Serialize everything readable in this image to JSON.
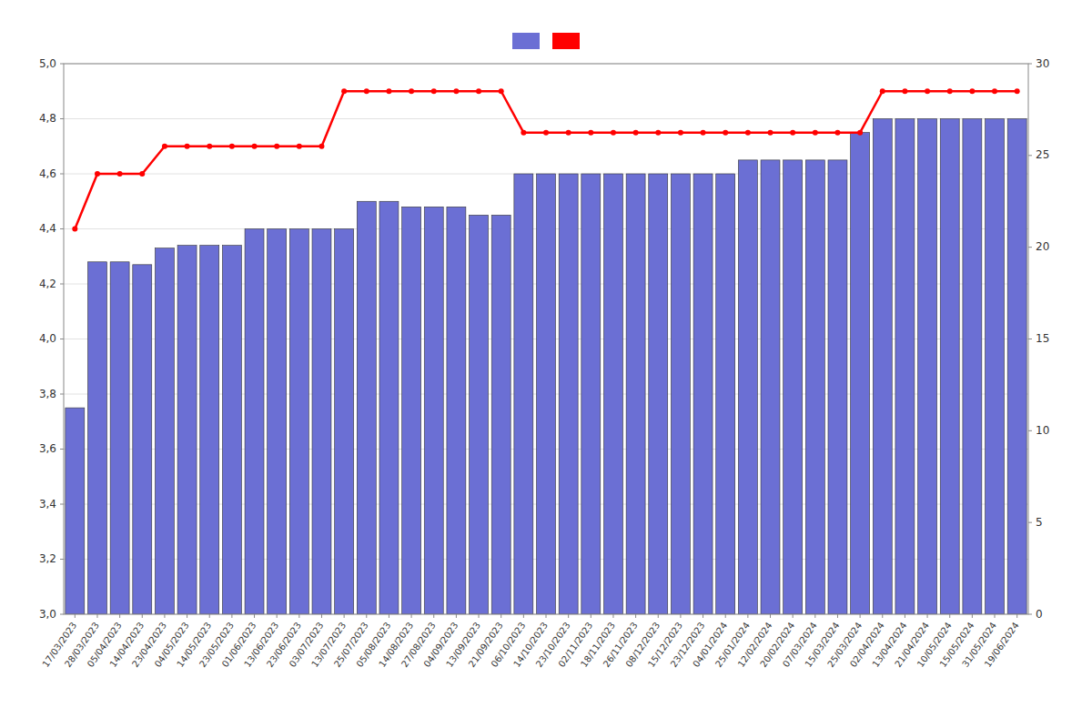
{
  "chart_data": {
    "type": "bar",
    "categories": [
      "17/03/2023",
      "28/03/2023",
      "05/04/2023",
      "14/04/2023",
      "23/04/2023",
      "04/05/2023",
      "14/05/2023",
      "23/05/2023",
      "01/06/2023",
      "13/06/2023",
      "23/06/2023",
      "03/07/2023",
      "13/07/2023",
      "25/07/2023",
      "05/08/2023",
      "14/08/2023",
      "27/08/2023",
      "04/09/2023",
      "13/09/2023",
      "21/09/2023",
      "06/10/2023",
      "14/10/2023",
      "23/10/2023",
      "02/11/2023",
      "18/11/2023",
      "26/11/2023",
      "08/12/2023",
      "15/12/2023",
      "23/12/2023",
      "04/01/2024",
      "25/01/2024",
      "12/02/2024",
      "20/02/2024",
      "07/03/2024",
      "15/03/2024",
      "25/03/2024",
      "02/04/2024",
      "13/04/2024",
      "21/04/2024",
      "10/05/2024",
      "15/05/2024",
      "31/05/2024",
      "19/06/2024"
    ],
    "series": [
      {
        "type": "bar",
        "color": "#6b6fd4",
        "values": [
          3.75,
          4.28,
          4.28,
          4.27,
          4.33,
          4.34,
          4.34,
          4.34,
          4.4,
          4.4,
          4.4,
          4.4,
          4.4,
          4.5,
          4.5,
          4.48,
          4.48,
          4.48,
          4.45,
          4.45,
          4.6,
          4.6,
          4.6,
          4.6,
          4.6,
          4.6,
          4.6,
          4.6,
          4.6,
          4.6,
          4.65,
          4.65,
          4.65,
          4.65,
          4.65,
          4.75,
          4.8,
          4.8,
          4.8,
          4.8,
          4.8,
          4.8,
          4.8
        ]
      },
      {
        "type": "line",
        "color": "#ff0000",
        "marker": "circle",
        "values": [
          4.4,
          4.6,
          4.6,
          4.6,
          4.7,
          4.7,
          4.7,
          4.7,
          4.7,
          4.7,
          4.7,
          4.7,
          4.9,
          4.9,
          4.9,
          4.9,
          4.9,
          4.9,
          4.9,
          4.9,
          4.75,
          4.75,
          4.75,
          4.75,
          4.75,
          4.75,
          4.75,
          4.75,
          4.75,
          4.75,
          4.75,
          4.75,
          4.75,
          4.75,
          4.75,
          4.75,
          4.9,
          4.9,
          4.9,
          4.9,
          4.9,
          4.9,
          4.9
        ]
      }
    ],
    "ylim": [
      3.0,
      5.0
    ],
    "yticks": [
      {
        "value": 3.0,
        "label": "3,0"
      },
      {
        "value": 3.2,
        "label": "3,2"
      },
      {
        "value": 3.4,
        "label": "3,4"
      },
      {
        "value": 3.6,
        "label": "3,6"
      },
      {
        "value": 3.8,
        "label": "3,8"
      },
      {
        "value": 4.0,
        "label": "4,0"
      },
      {
        "value": 4.2,
        "label": "4,2"
      },
      {
        "value": 4.4,
        "label": "4,4"
      },
      {
        "value": 4.6,
        "label": "4,6"
      },
      {
        "value": 4.8,
        "label": "4,8"
      },
      {
        "value": 5.0,
        "label": "5,0"
      }
    ],
    "y2lim": [
      0,
      30
    ],
    "y2ticks": [
      0,
      5,
      10,
      15,
      20,
      25,
      30
    ],
    "grid": true,
    "legend": "top"
  }
}
